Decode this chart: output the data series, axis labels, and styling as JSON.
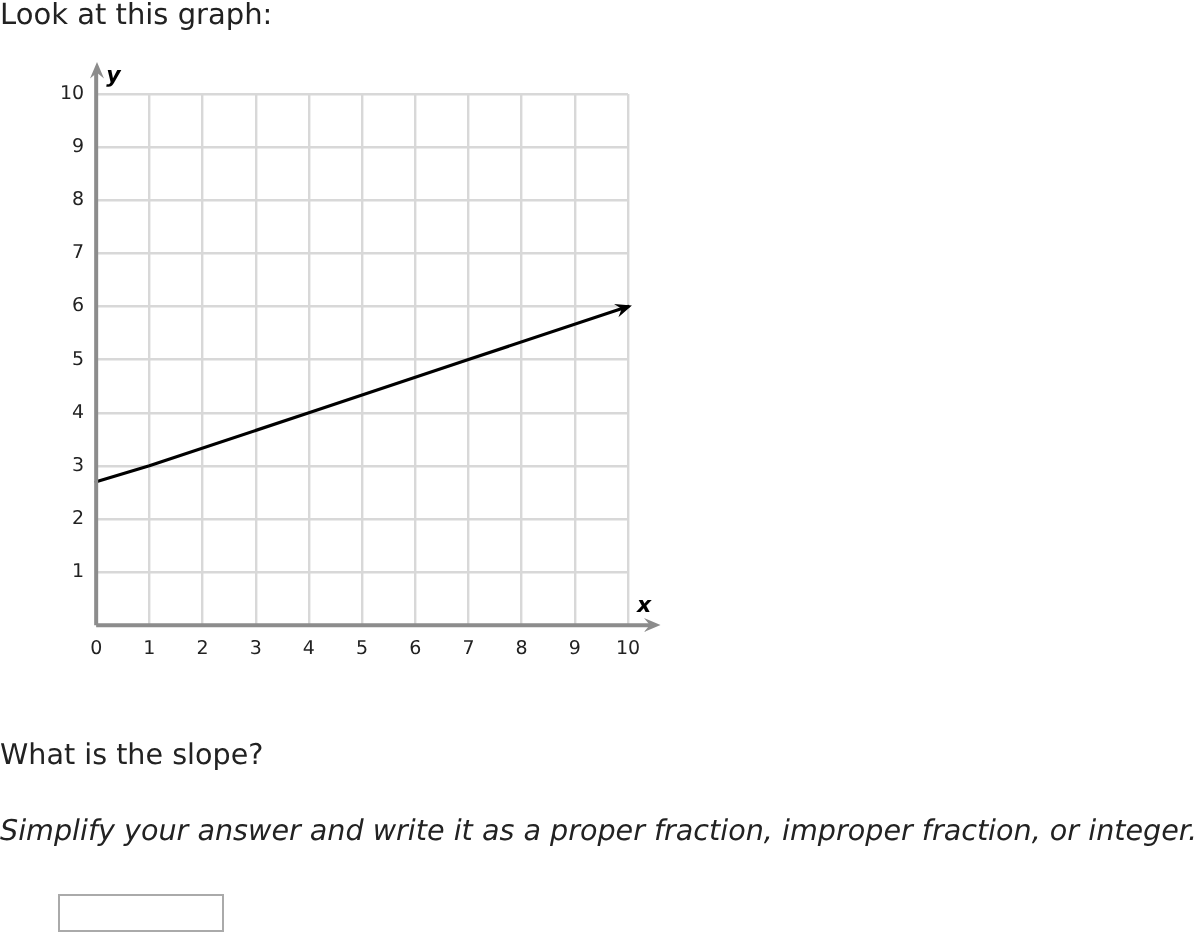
{
  "chart_data": {
    "type": "line",
    "title": "Look at this graph:",
    "xlabel": "x",
    "ylabel": "y",
    "x": [
      0,
      1,
      4,
      7,
      10
    ],
    "series": [
      {
        "color": "#000000",
        "values": [
          2.7,
          3,
          4,
          5,
          6
        ]
      }
    ],
    "xlim": [
      0,
      10
    ],
    "ylim": [
      0,
      10
    ],
    "xticks": [
      0,
      1,
      2,
      3,
      4,
      5,
      6,
      7,
      8,
      9,
      10
    ],
    "yticks": [
      {
        "value": 0,
        "label": null
      },
      1,
      2,
      3,
      4,
      5,
      6,
      7,
      8,
      9,
      10
    ],
    "grid": true,
    "legend": false,
    "marker": "none",
    "line_style": "solid",
    "annotations": [
      "What is the slope?",
      "Simplify your answer and write it as a proper fraction, improper fraction, or integer."
    ]
  }
}
